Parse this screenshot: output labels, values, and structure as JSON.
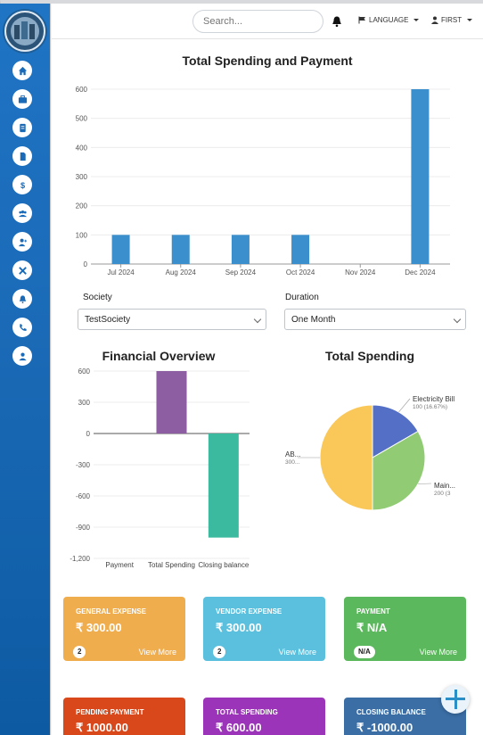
{
  "topbar": {
    "search_placeholder": "Search...",
    "language_label": "LANGUAGE",
    "user_label": "FIRST"
  },
  "sidebar": {
    "items": [
      {
        "icon": "home-icon"
      },
      {
        "icon": "briefcase-icon"
      },
      {
        "icon": "receipt-icon"
      },
      {
        "icon": "document-icon"
      },
      {
        "icon": "dollar-icon"
      },
      {
        "icon": "group-icon"
      },
      {
        "icon": "user-add-icon"
      },
      {
        "icon": "tools-icon"
      },
      {
        "icon": "bell-icon"
      },
      {
        "icon": "phone-icon"
      },
      {
        "icon": "user-icon"
      }
    ]
  },
  "spending_chart": {
    "title": "Total Spending and Payment"
  },
  "filters": {
    "society_label": "Society",
    "society_value": "TestSociety",
    "duration_label": "Duration",
    "duration_value": "One Month"
  },
  "overview": {
    "title": "Financial Overview"
  },
  "pie": {
    "title": "Total Spending"
  },
  "cards": [
    {
      "title": "General Expense",
      "value": "₹ 300.00",
      "badge": "2",
      "link": "View More",
      "color": "#f0ad4e"
    },
    {
      "title": "Vendor Expense",
      "value": "₹ 300.00",
      "badge": "2",
      "link": "View More",
      "color": "#5bc0de"
    },
    {
      "title": "Payment",
      "value": "₹ N/A",
      "badge": "N/A",
      "link": "View More",
      "color": "#5cb85c"
    },
    {
      "title": "Pending Payment",
      "value": "₹ 1000.00",
      "color": "#d9481a"
    },
    {
      "title": "Total Spending",
      "value": "₹ 600.00",
      "color": "#9b34b8"
    },
    {
      "title": "Closing Balance",
      "value": "₹ -1000.00",
      "color": "#3a6ea5"
    }
  ],
  "chart_data": [
    {
      "type": "bar",
      "title": "Total Spending and Payment",
      "categories": [
        "Jul 2024",
        "Aug 2024",
        "Sep 2024",
        "Oct 2024",
        "Nov 2024",
        "Dec 2024"
      ],
      "values": [
        100,
        100,
        100,
        100,
        0,
        600
      ],
      "yticks": [
        "0",
        "100",
        "200",
        "300",
        "400",
        "500",
        "600"
      ],
      "ylim": [
        0,
        600
      ],
      "color": "#3a8fcc",
      "grid": true
    },
    {
      "type": "bar",
      "title": "Financial Overview",
      "categories": [
        "Payment",
        "Total Spending",
        "Closing balance"
      ],
      "values": [
        0,
        600,
        -1000
      ],
      "yticks": [
        "600",
        "300",
        "0",
        "-300",
        "-600",
        "-900",
        "-1,200"
      ],
      "ylim": [
        -1200,
        600
      ],
      "colors": [
        "#3a8fcc",
        "#8e5ea2",
        "#3cba9f"
      ],
      "grid": true
    },
    {
      "type": "pie",
      "title": "Total Spending",
      "labels": [
        "Electricity Bill",
        "Main...",
        "AB..."
      ],
      "values": [
        100,
        200,
        300
      ],
      "value_labels": [
        "100 (16.67%)",
        "200 (3",
        "300..."
      ],
      "colors": [
        "#5470c6",
        "#91cc75",
        "#fac858"
      ]
    }
  ]
}
